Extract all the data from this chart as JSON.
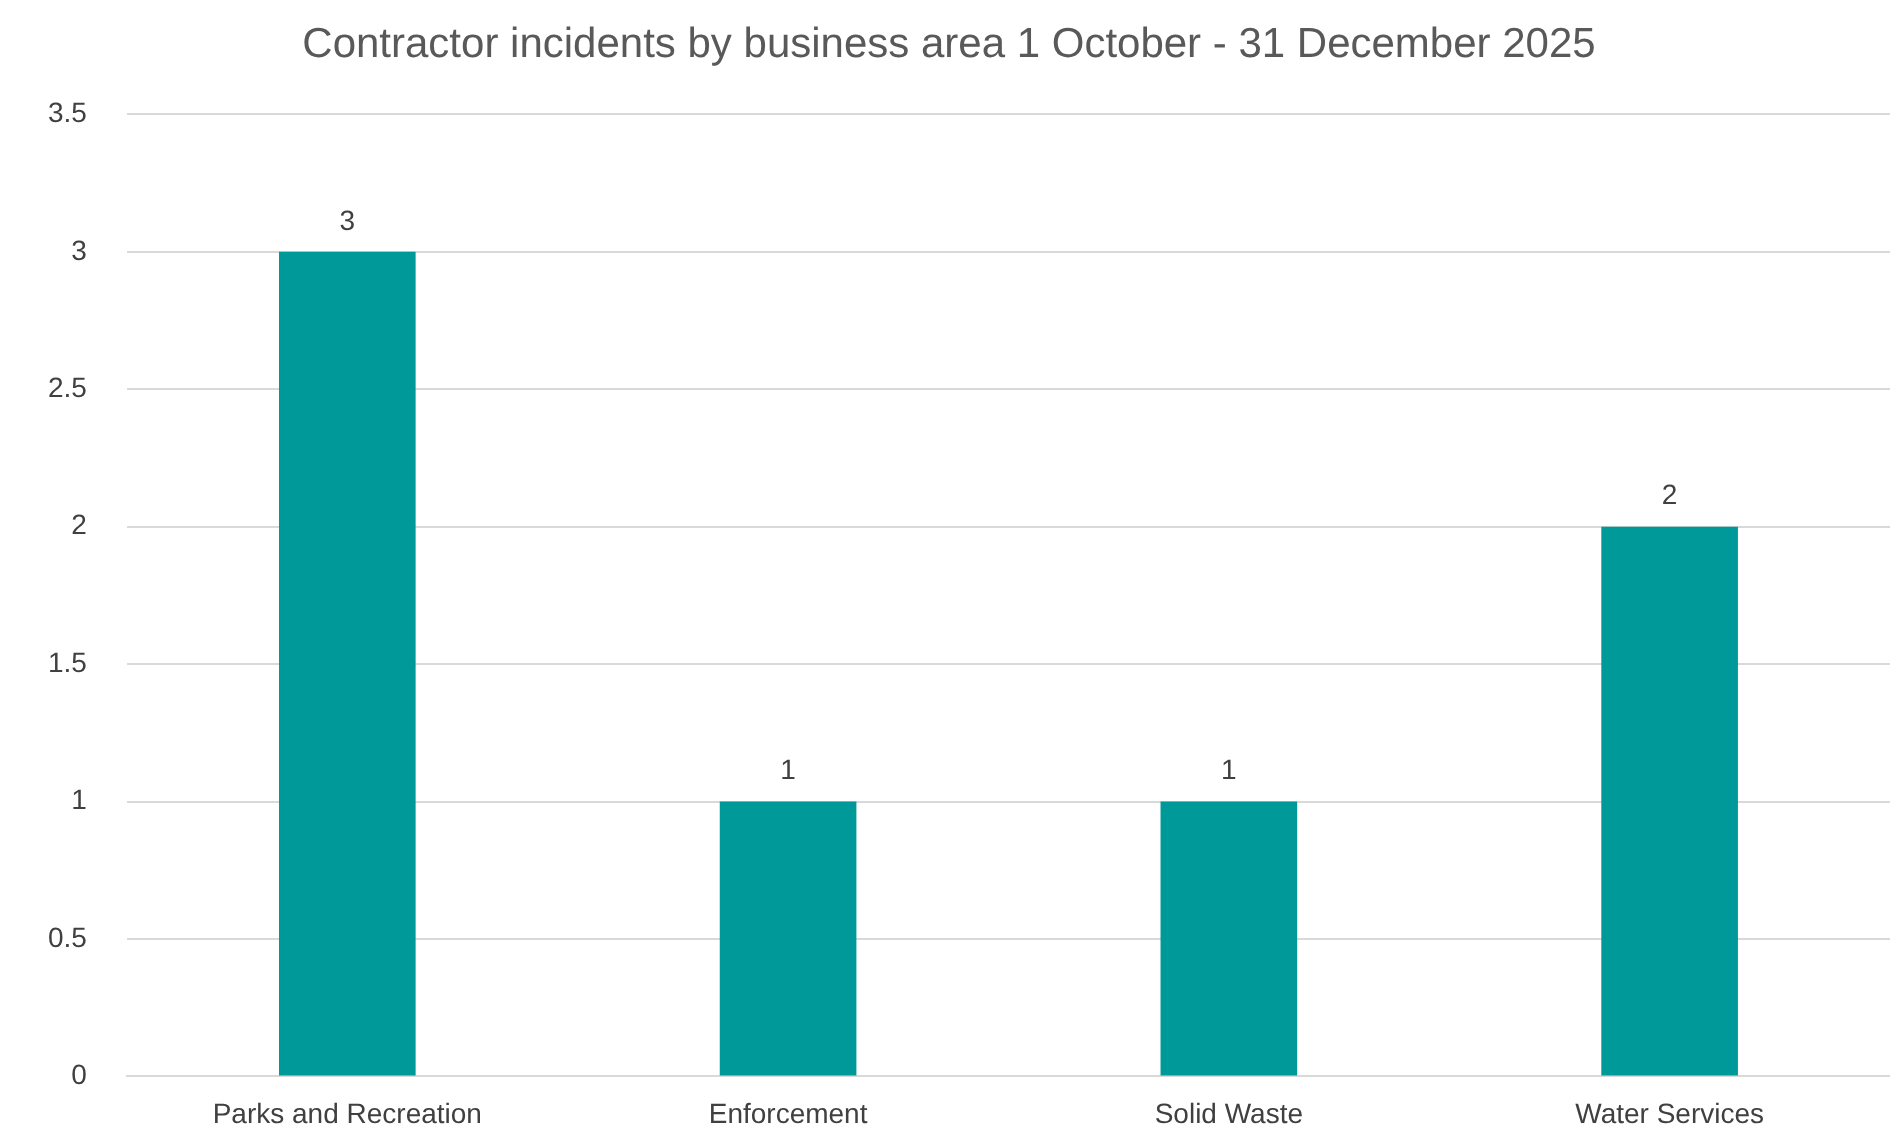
{
  "chart_data": {
    "type": "bar",
    "title": "Contractor incidents by business area 1 October - 31 December 2025",
    "categories": [
      "Parks and Recreation",
      "Enforcement",
      "Solid Waste",
      "Water Services"
    ],
    "values": [
      3,
      1,
      1,
      2
    ],
    "color": "#009999",
    "ylim": [
      0,
      3.5
    ],
    "yticks": [
      0,
      0.5,
      1,
      1.5,
      2,
      2.5,
      3,
      3.5
    ],
    "grid": "y",
    "data_labels": true,
    "legend": false
  }
}
